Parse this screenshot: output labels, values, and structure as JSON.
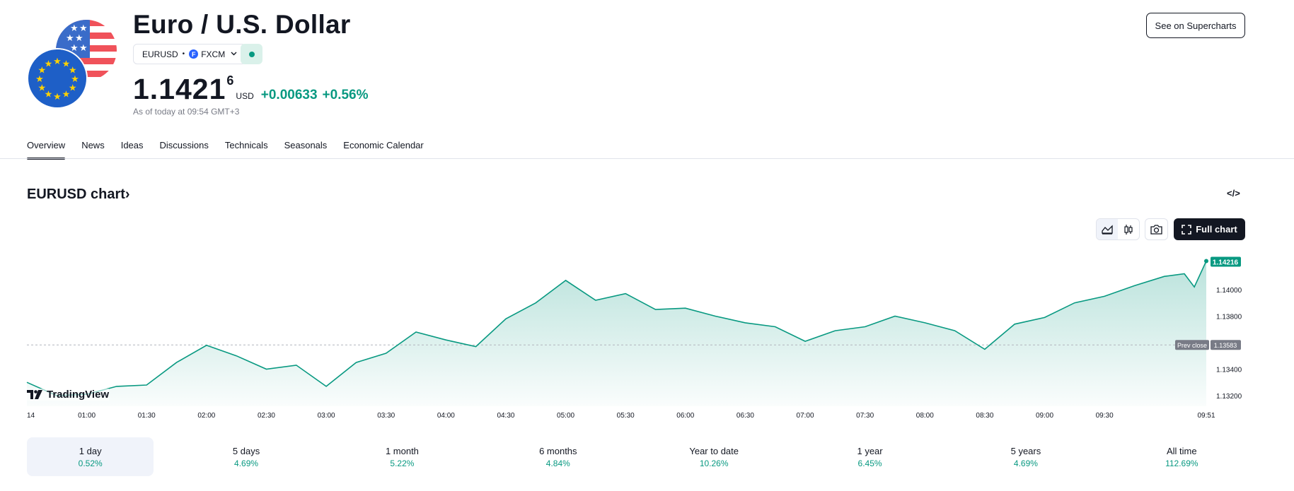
{
  "header": {
    "title": "Euro / U.S. Dollar",
    "ticker": "EURUSD",
    "separator": "•",
    "exchange_icon_letter": "F",
    "exchange": "FXCM",
    "price_main": "1.1421",
    "price_fraction": "6",
    "currency": "USD",
    "change": "+0.00633",
    "change_percent": "+0.56%",
    "as_of": "As of today at 09:54 GMT+3",
    "see_supercharts": "See on Supercharts",
    "market_status": "market-open",
    "colors": {
      "up": "#089981",
      "text": "#131722",
      "muted": "#787b86"
    }
  },
  "tabs": [
    {
      "label": "Overview",
      "active": true
    },
    {
      "label": "News"
    },
    {
      "label": "Ideas"
    },
    {
      "label": "Discussions"
    },
    {
      "label": "Technicals"
    },
    {
      "label": "Seasonals"
    },
    {
      "label": "Economic Calendar"
    }
  ],
  "chart_section": {
    "title": "EURUSD chart",
    "title_arrow": "›",
    "embed_icon": "</>",
    "full_chart_label": "Full chart",
    "logo_text": "TradingView"
  },
  "chart_data": {
    "type": "area",
    "x_labels": [
      "14",
      "01:00",
      "01:30",
      "02:00",
      "02:30",
      "03:00",
      "03:30",
      "04:00",
      "04:30",
      "05:00",
      "05:30",
      "06:00",
      "06:30",
      "07:00",
      "07:30",
      "08:00",
      "08:30",
      "09:00",
      "09:30",
      "09:51"
    ],
    "y_ticks": [
      "1.14000",
      "1.13800",
      "1.13400",
      "1.13200"
    ],
    "y_tick_values": [
      1.14,
      1.138,
      1.134,
      1.132
    ],
    "ylim": [
      1.1312,
      1.1432
    ],
    "current_label": "1.14216",
    "current_value": 1.14216,
    "prev_close_text": "Prev close",
    "prev_close_label": "1.13583",
    "prev_close_value": 1.13583,
    "series": [
      {
        "x": [
          "00:00",
          "00:15",
          "00:30",
          "00:45",
          "01:00",
          "01:15",
          "01:30",
          "01:45",
          "02:00",
          "02:15",
          "02:30",
          "02:45",
          "03:00",
          "03:15",
          "03:30",
          "03:45",
          "04:00",
          "04:15",
          "04:30",
          "04:45",
          "05:00",
          "05:15",
          "05:30",
          "05:45",
          "06:00",
          "06:15",
          "06:30",
          "06:45",
          "07:00",
          "07:15",
          "07:30",
          "07:45",
          "08:00",
          "08:15",
          "08:30",
          "08:45",
          "09:00",
          "09:15",
          "09:30",
          "09:40",
          "09:45",
          "09:51"
        ],
        "values": [
          1.133,
          1.132,
          1.1321,
          1.1327,
          1.1328,
          1.1345,
          1.1358,
          1.135,
          1.134,
          1.1343,
          1.1327,
          1.1345,
          1.1352,
          1.1368,
          1.1362,
          1.1357,
          1.1378,
          1.139,
          1.1407,
          1.1392,
          1.1397,
          1.1385,
          1.1386,
          1.138,
          1.1375,
          1.1372,
          1.1361,
          1.1369,
          1.1372,
          1.138,
          1.1375,
          1.1369,
          1.1355,
          1.1374,
          1.1379,
          1.139,
          1.1395,
          1.1403,
          1.141,
          1.1412,
          1.1402,
          1.14216
        ]
      }
    ],
    "color": "#089981",
    "grid": false
  },
  "periods": [
    {
      "label": "1 day",
      "value": "0.52%",
      "active": true
    },
    {
      "label": "5 days",
      "value": "4.69%"
    },
    {
      "label": "1 month",
      "value": "5.22%"
    },
    {
      "label": "6 months",
      "value": "4.84%"
    },
    {
      "label": "Year to date",
      "value": "10.26%"
    },
    {
      "label": "1 year",
      "value": "6.45%"
    },
    {
      "label": "5 years",
      "value": "4.69%"
    },
    {
      "label": "All time",
      "value": "112.69%"
    }
  ]
}
